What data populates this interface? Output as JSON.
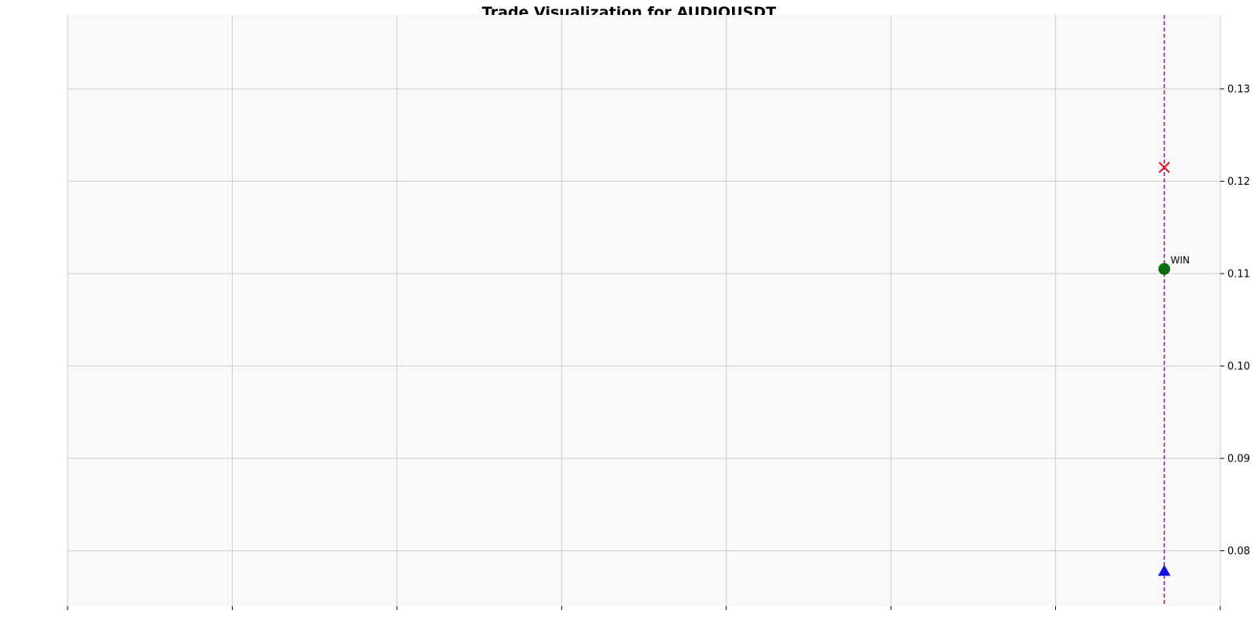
{
  "chart_data": {
    "type": "scatter",
    "title": "Trade Visualization for AUDIOUSDT",
    "xlabel": "",
    "ylabel": "",
    "ylim": [
      0.074,
      0.138
    ],
    "yticks": [
      0.08,
      0.09,
      0.1,
      0.11,
      0.12,
      0.13
    ],
    "ytick_labels": [
      "0.08",
      "0.09",
      "0.10",
      "0.11",
      "0.12",
      "0.13"
    ],
    "xlim": [
      0,
      7
    ],
    "xticks": [
      0,
      1,
      2,
      3,
      4,
      5,
      6,
      7
    ],
    "grid": true,
    "y_axis_side": "right",
    "vertical_line": {
      "x": 6.66,
      "style": "dashed",
      "color": "#8b1a8b"
    },
    "markers": [
      {
        "kind": "stop-loss",
        "shape": "x",
        "x": 6.66,
        "y": 0.1215,
        "color": "#e8101a"
      },
      {
        "kind": "exit",
        "shape": "circle",
        "x": 6.66,
        "y": 0.1105,
        "color": "#0b6e0b",
        "label": "WIN"
      },
      {
        "kind": "entry",
        "shape": "triangle-up",
        "x": 6.66,
        "y": 0.0778,
        "color": "#1010e8"
      }
    ],
    "colors": {
      "plot_background": "#f9f9f9",
      "grid": "#cccccc"
    }
  }
}
